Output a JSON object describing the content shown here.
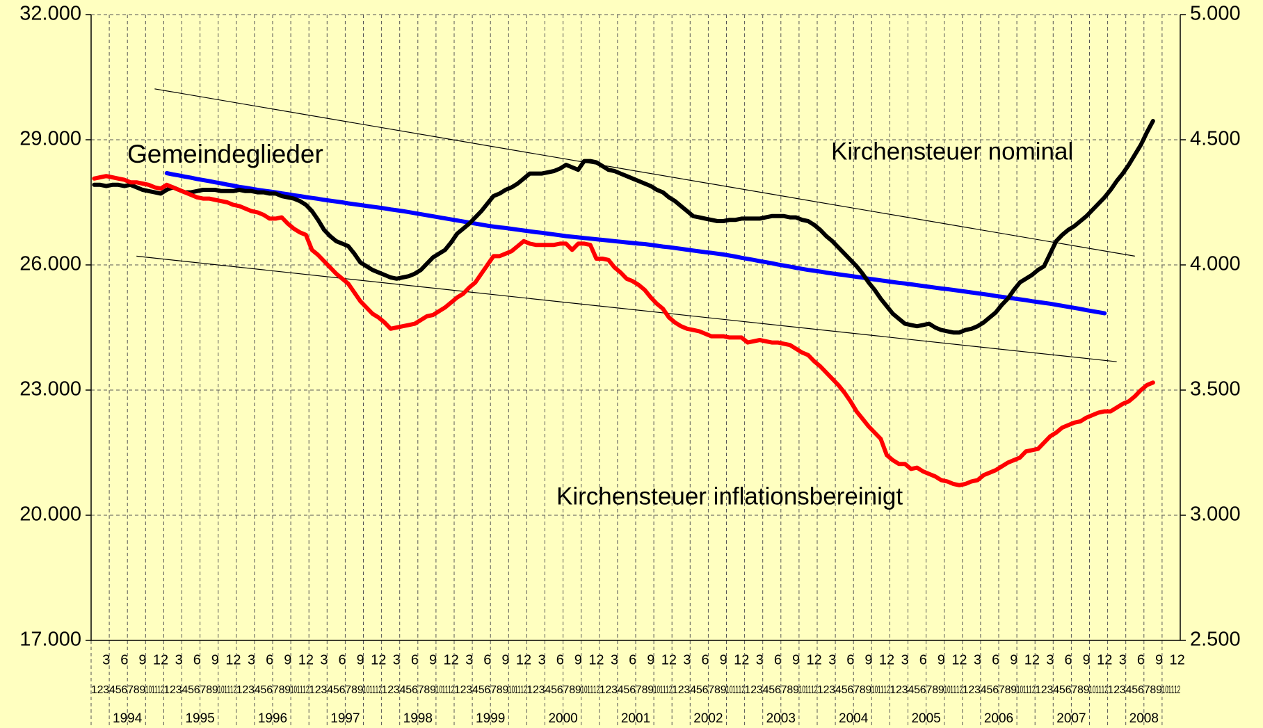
{
  "chart_data": {
    "type": "line",
    "categories": [
      "1",
      "2",
      "3",
      "4",
      "5",
      "6",
      "7",
      "8",
      "9",
      "10",
      "11",
      "12",
      "1",
      "2",
      "3",
      "4",
      "5",
      "6",
      "7",
      "8",
      "9",
      "10",
      "11",
      "12",
      "1",
      "2",
      "3",
      "4",
      "5",
      "6",
      "7",
      "8",
      "9",
      "10",
      "11",
      "12",
      "1",
      "2",
      "3",
      "4",
      "5",
      "6",
      "7",
      "8",
      "9",
      "10",
      "11",
      "12",
      "1",
      "2",
      "3",
      "4",
      "5",
      "6",
      "7",
      "8",
      "9",
      "10",
      "11",
      "12",
      "1",
      "2",
      "3",
      "4",
      "5",
      "6",
      "7",
      "8",
      "9",
      "10",
      "11",
      "12",
      "1",
      "2",
      "3",
      "4",
      "5",
      "6",
      "7",
      "8",
      "9",
      "10",
      "11",
      "12",
      "1",
      "2",
      "3",
      "4",
      "5",
      "6",
      "7",
      "8",
      "9",
      "10",
      "11",
      "12",
      "1",
      "2",
      "3",
      "4",
      "5",
      "6",
      "7",
      "8",
      "9",
      "10",
      "11",
      "12",
      "1",
      "2",
      "3",
      "4",
      "5",
      "6",
      "7",
      "8",
      "9",
      "10",
      "11",
      "12",
      "1",
      "2",
      "3",
      "4",
      "5",
      "6",
      "7",
      "8",
      "9",
      "10",
      "11",
      "12",
      "1",
      "2",
      "3",
      "4",
      "5",
      "6",
      "7",
      "8",
      "9",
      "10",
      "11",
      "12",
      "1",
      "2",
      "3",
      "4",
      "5",
      "6",
      "7",
      "8",
      "9",
      "10",
      "11",
      "12",
      "1",
      "2",
      "3",
      "4",
      "5",
      "6",
      "7",
      "8",
      "9",
      "10",
      "11",
      "12",
      "1",
      "2",
      "3",
      "4",
      "5",
      "6",
      "7",
      "8",
      "9",
      "10",
      "11",
      "12"
    ],
    "years": [
      "1994",
      "1995",
      "1996",
      "1997",
      "1998",
      "1999",
      "2000",
      "2001",
      "2002",
      "2003",
      "2004",
      "2005",
      "2006",
      "2007",
      "2008"
    ],
    "series": [
      {
        "name": "Gemeindeglieder",
        "color": "#0000ff",
        "axis": "y",
        "values": [
          null,
          null,
          null,
          null,
          null,
          null,
          null,
          null,
          null,
          null,
          null,
          null,
          28200,
          28170,
          28145,
          28115,
          28090,
          28060,
          28035,
          28010,
          27980,
          27955,
          27925,
          27900,
          27870,
          27850,
          27825,
          27800,
          27780,
          27760,
          27740,
          27715,
          27695,
          27670,
          27650,
          27625,
          27605,
          27585,
          27560,
          27540,
          27520,
          27500,
          27475,
          27455,
          27435,
          27415,
          27395,
          27375,
          27355,
          27330,
          27310,
          27290,
          27265,
          27240,
          27215,
          27190,
          27165,
          27140,
          27115,
          27090,
          27065,
          27040,
          27015,
          26990,
          26965,
          26940,
          26920,
          26900,
          26885,
          26865,
          26845,
          26825,
          26805,
          26785,
          26770,
          26750,
          26730,
          26710,
          26690,
          26675,
          26660,
          26645,
          26630,
          26615,
          26600,
          26585,
          26570,
          26555,
          26540,
          26525,
          26510,
          26500,
          26480,
          26460,
          26440,
          26425,
          26405,
          26385,
          26365,
          26345,
          26325,
          26305,
          26290,
          26270,
          26250,
          26225,
          26200,
          26170,
          26145,
          26120,
          26090,
          26065,
          26040,
          26010,
          25985,
          25960,
          25930,
          25905,
          25880,
          25860,
          25840,
          25815,
          25795,
          25775,
          25755,
          25735,
          25715,
          25695,
          25670,
          25650,
          25630,
          25610,
          25590,
          25570,
          25555,
          25535,
          25515,
          25495,
          25475,
          25455,
          25435,
          25420,
          25400,
          25380,
          25360,
          25340,
          25320,
          25300,
          25280,
          25255,
          25235,
          25215,
          25195,
          25175,
          25155,
          25130,
          25110,
          25090,
          25070,
          25045,
          25020,
          24995,
          24970,
          24945,
          24915,
          24890,
          24865,
          24840,
          null,
          null,
          null,
          null,
          null,
          null,
          null,
          null,
          null,
          null,
          null,
          null
        ]
      },
      {
        "name": "Kirchensteuer nominal",
        "color": "#000000",
        "axis": "y2",
        "values": [
          4320,
          4320,
          4315,
          4320,
          4320,
          4315,
          4320,
          4310,
          4300,
          4295,
          4290,
          4285,
          4300,
          4310,
          4300,
          4290,
          4290,
          4295,
          4300,
          4300,
          4300,
          4295,
          4295,
          4295,
          4300,
          4295,
          4295,
          4290,
          4290,
          4285,
          4285,
          4275,
          4270,
          4265,
          4255,
          4240,
          4215,
          4180,
          4140,
          4115,
          4095,
          4085,
          4075,
          4045,
          4010,
          3995,
          3980,
          3970,
          3960,
          3950,
          3945,
          3950,
          3955,
          3965,
          3980,
          4005,
          4030,
          4045,
          4060,
          4090,
          4125,
          4145,
          4165,
          4190,
          4215,
          4245,
          4275,
          4285,
          4300,
          4310,
          4325,
          4345,
          4365,
          4365,
          4365,
          4370,
          4375,
          4385,
          4400,
          4390,
          4380,
          4415,
          4415,
          4410,
          4395,
          4380,
          4375,
          4365,
          4355,
          4345,
          4335,
          4325,
          4315,
          4300,
          4290,
          4270,
          4255,
          4235,
          4215,
          4195,
          4190,
          4185,
          4180,
          4175,
          4175,
          4180,
          4180,
          4185,
          4185,
          4185,
          4185,
          4190,
          4195,
          4195,
          4195,
          4190,
          4190,
          4180,
          4175,
          4160,
          4140,
          4115,
          4095,
          4070,
          4045,
          4020,
          3995,
          3965,
          3930,
          3900,
          3865,
          3835,
          3805,
          3785,
          3765,
          3760,
          3755,
          3760,
          3765,
          3750,
          3740,
          3735,
          3730,
          3730,
          3740,
          3745,
          3755,
          3770,
          3790,
          3810,
          3840,
          3865,
          3900,
          3930,
          3945,
          3960,
          3980,
          3995,
          4045,
          4095,
          4120,
          4140,
          4155,
          4175,
          4195,
          4220,
          4245,
          4270,
          4300,
          4335,
          4365,
          4400,
          4440,
          4480,
          4530,
          4575,
          null,
          null,
          null,
          null
        ]
      },
      {
        "name": "Kirchensteuer inflationsbereinigt",
        "color": "#ff0000",
        "axis": "y2",
        "values": [
          4345,
          4350,
          4355,
          4350,
          4345,
          4340,
          4330,
          4330,
          4325,
          4320,
          4310,
          4305,
          4320,
          4310,
          4300,
          4290,
          4280,
          4270,
          4265,
          4265,
          4260,
          4255,
          4250,
          4240,
          4235,
          4225,
          4215,
          4210,
          4200,
          4185,
          4185,
          4190,
          4165,
          4145,
          4130,
          4120,
          4060,
          4040,
          4015,
          3990,
          3965,
          3945,
          3925,
          3890,
          3855,
          3830,
          3805,
          3790,
          3770,
          3745,
          3750,
          3755,
          3760,
          3765,
          3780,
          3795,
          3800,
          3815,
          3830,
          3850,
          3870,
          3885,
          3910,
          3930,
          3965,
          4000,
          4035,
          4035,
          4045,
          4055,
          4075,
          4095,
          4085,
          4080,
          4080,
          4080,
          4080,
          4085,
          4085,
          4060,
          4085,
          4085,
          4080,
          4025,
          4025,
          4020,
          3990,
          3970,
          3945,
          3935,
          3920,
          3900,
          3870,
          3845,
          3825,
          3790,
          3770,
          3755,
          3745,
          3740,
          3735,
          3725,
          3715,
          3715,
          3715,
          3710,
          3710,
          3710,
          3690,
          3695,
          3700,
          3695,
          3690,
          3690,
          3685,
          3680,
          3665,
          3650,
          3640,
          3615,
          3595,
          3570,
          3545,
          3520,
          3490,
          3455,
          3415,
          3385,
          3355,
          3330,
          3305,
          3240,
          3220,
          3205,
          3205,
          3185,
          3190,
          3175,
          3165,
          3155,
          3140,
          3135,
          3125,
          3120,
          3125,
          3135,
          3140,
          3160,
          3170,
          3180,
          3195,
          3210,
          3220,
          3230,
          3255,
          3260,
          3265,
          3290,
          3315,
          3330,
          3350,
          3360,
          3370,
          3375,
          3390,
          3400,
          3410,
          3415,
          3415,
          3430,
          3445,
          3455,
          3475,
          3500,
          3520,
          3530,
          null,
          null,
          null,
          null
        ]
      }
    ],
    "trend_lines": [
      {
        "x": [
          10,
          172
        ],
        "values": [
          30220,
          26210
        ]
      },
      {
        "x": [
          7,
          169
        ],
        "values": [
          26210,
          23680
        ]
      }
    ],
    "ylim": [
      17000,
      32000
    ],
    "yticks": [
      {
        "value": 17000,
        "label": "17.000"
      },
      {
        "value": 20000,
        "label": "20.000"
      },
      {
        "value": 23000,
        "label": "23.000"
      },
      {
        "value": 26000,
        "label": "26.000"
      },
      {
        "value": 29000,
        "label": "29.000"
      },
      {
        "value": 32000,
        "label": "32.000"
      }
    ],
    "y2lim": [
      2500,
      5000
    ],
    "y2ticks": [
      {
        "value": 2500,
        "label": "2.500"
      },
      {
        "value": 3000,
        "label": "3.000"
      },
      {
        "value": 3500,
        "label": "3.500"
      },
      {
        "value": 4000,
        "label": "4.000"
      },
      {
        "value": 4500,
        "label": "4.500"
      },
      {
        "value": 5000,
        "label": "5.000"
      }
    ],
    "grid": true
  }
}
